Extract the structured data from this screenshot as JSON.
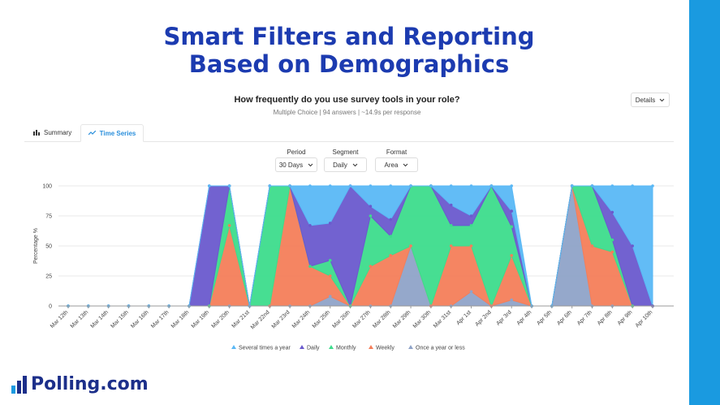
{
  "header": {
    "title_line1": "Smart Filters and Reporting",
    "title_line2": "Based on Demographics"
  },
  "question": {
    "title": "How frequently do you use survey tools in your role?",
    "subtitle": "Multiple Choice | 94 answers | ~14.9s per response",
    "details_label": "Details"
  },
  "tabs": {
    "summary": "Summary",
    "time_series": "Time Series"
  },
  "controls": {
    "period_label": "Period",
    "period_value": "30 Days",
    "segment_label": "Segment",
    "segment_value": "Daily",
    "format_label": "Format",
    "format_value": "Area"
  },
  "brand": {
    "name": "Polling.com"
  },
  "colors": {
    "accent": "#1c3bb0",
    "brand": "#1a9ae0",
    "several": "#5ab8f5",
    "daily": "#6a5acd",
    "monthly": "#3ddc8c",
    "weekly": "#f47e5a",
    "once": "#8fa3c8"
  },
  "chart_data": {
    "type": "area",
    "title": "",
    "ylabel": "Percentage %",
    "xlabel": "",
    "ylim": [
      0,
      100
    ],
    "yticks": [
      0,
      25,
      50,
      75,
      100
    ],
    "categories": [
      "Mar 12th",
      "Mar 13th",
      "Mar 14th",
      "Mar 15th",
      "Mar 16th",
      "Mar 17th",
      "Mar 18th",
      "Mar 19th",
      "Mar 20th",
      "Mar 21st",
      "Mar 22nd",
      "Mar 23rd",
      "Mar 24th",
      "Mar 25th",
      "Mar 26th",
      "Mar 27th",
      "Mar 28th",
      "Mar 29th",
      "Mar 30th",
      "Mar 31st",
      "Apr 1st",
      "Apr 2nd",
      "Apr 3rd",
      "Apr 4th",
      "Apr 5th",
      "Apr 6th",
      "Apr 7th",
      "Apr 8th",
      "Apr 9th",
      "Apr 10th"
    ],
    "series": [
      {
        "name": "Once a year or less",
        "values": [
          0,
          0,
          0,
          0,
          0,
          0,
          0,
          0,
          0,
          0,
          0,
          0,
          0,
          8,
          0,
          0,
          0,
          50,
          0,
          0,
          12,
          0,
          5,
          0,
          0,
          100,
          0,
          0,
          0,
          0
        ]
      },
      {
        "name": "Weekly",
        "values": [
          0,
          0,
          0,
          0,
          0,
          0,
          0,
          0,
          67,
          0,
          0,
          100,
          33,
          17,
          0,
          33,
          42,
          0,
          0,
          50,
          38,
          0,
          37,
          0,
          0,
          0,
          50,
          45,
          0,
          0
        ]
      },
      {
        "name": "Monthly",
        "values": [
          0,
          0,
          0,
          0,
          0,
          0,
          0,
          0,
          33,
          0,
          100,
          0,
          0,
          13,
          0,
          42,
          16,
          50,
          100,
          17,
          17,
          100,
          24,
          0,
          0,
          0,
          50,
          10,
          0,
          0
        ]
      },
      {
        "name": "Daily",
        "values": [
          0,
          0,
          0,
          0,
          0,
          0,
          0,
          100,
          0,
          0,
          0,
          0,
          34,
          31,
          100,
          8,
          14,
          0,
          0,
          17,
          8,
          0,
          13,
          0,
          0,
          0,
          0,
          23,
          50,
          0
        ]
      },
      {
        "name": "Several times a year",
        "values": [
          0,
          0,
          0,
          0,
          0,
          0,
          0,
          0,
          0,
          0,
          0,
          0,
          33,
          31,
          0,
          17,
          28,
          0,
          0,
          16,
          25,
          0,
          21,
          0,
          0,
          0,
          0,
          22,
          50,
          100
        ]
      }
    ],
    "legend": [
      "Several times a year",
      "Daily",
      "Monthly",
      "Weekly",
      "Once a year or less"
    ],
    "legend_position": "bottom"
  }
}
